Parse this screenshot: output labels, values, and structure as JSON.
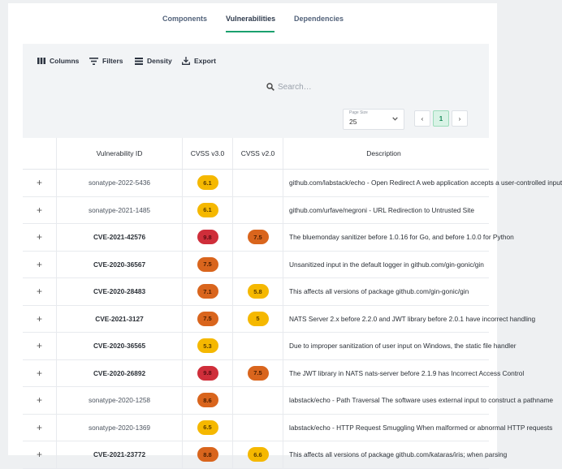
{
  "tabs": [
    {
      "label": "Components",
      "active": false
    },
    {
      "label": "Vulnerabilities",
      "active": true
    },
    {
      "label": "Dependencies",
      "active": false
    }
  ],
  "toolbar": {
    "columns_label": "Columns",
    "filters_label": "Filters",
    "density_label": "Density",
    "export_label": "Export"
  },
  "search": {
    "placeholder": "Search…"
  },
  "pagination": {
    "page_size_label": "Page Size",
    "page_size_value": "25",
    "prev": "‹",
    "current_page": "1",
    "next": "›"
  },
  "table": {
    "headers": {
      "id": "Vulnerability ID",
      "cvss_v3": "CVSS v3.0",
      "cvss_v2": "CVSS v2.0",
      "description": "Description"
    },
    "rows": [
      {
        "expand": "+",
        "id": "sonatype-2022-5436",
        "cvss_v3": "6.1",
        "cvss_v3_level": "medium",
        "cvss_v2": "",
        "cvss_v2_level": "",
        "description": "github.com/labstack/echo - Open Redirect A web application accepts a user-controlled input"
      },
      {
        "expand": "+",
        "id": "sonatype-2021-1485",
        "cvss_v3": "6.1",
        "cvss_v3_level": "medium",
        "cvss_v2": "",
        "cvss_v2_level": "",
        "description": "github.com/urfave/negroni - URL Redirection to Untrusted Site"
      },
      {
        "expand": "+",
        "id": "CVE-2021-42576",
        "cvss_v3": "9.8",
        "cvss_v3_level": "critical",
        "cvss_v2": "7.5",
        "cvss_v2_level": "high",
        "description": "The bluemonday sanitizer before 1.0.16 for Go, and before 1.0.0 for Python"
      },
      {
        "expand": "+",
        "id": "CVE-2020-36567",
        "cvss_v3": "7.5",
        "cvss_v3_level": "high",
        "cvss_v2": "",
        "cvss_v2_level": "",
        "description": "Unsanitized input in the default logger in github.com/gin-gonic/gin"
      },
      {
        "expand": "+",
        "id": "CVE-2020-28483",
        "cvss_v3": "7.1",
        "cvss_v3_level": "high",
        "cvss_v2": "5.8",
        "cvss_v2_level": "medium",
        "description": "This affects all versions of package github.com/gin-gonic/gin"
      },
      {
        "expand": "+",
        "id": "CVE-2021-3127",
        "cvss_v3": "7.5",
        "cvss_v3_level": "high",
        "cvss_v2": "5",
        "cvss_v2_level": "medium",
        "description": "NATS Server 2.x before 2.2.0 and JWT library before 2.0.1 have incorrect handling"
      },
      {
        "expand": "+",
        "id": "CVE-2020-36565",
        "cvss_v3": "5.3",
        "cvss_v3_level": "medium",
        "cvss_v2": "",
        "cvss_v2_level": "",
        "description": "Due to improper sanitization of user input on Windows, the static file handler"
      },
      {
        "expand": "+",
        "id": "CVE-2020-26892",
        "cvss_v3": "9.8",
        "cvss_v3_level": "critical",
        "cvss_v2": "7.5",
        "cvss_v2_level": "high",
        "description": "The JWT library in NATS nats-server before 2.1.9 has Incorrect Access Control"
      },
      {
        "expand": "+",
        "id": "sonatype-2020-1258",
        "cvss_v3": "8.6",
        "cvss_v3_level": "high",
        "cvss_v2": "",
        "cvss_v2_level": "",
        "description": "labstack/echo - Path Traversal The software uses external input to construct a pathname"
      },
      {
        "expand": "+",
        "id": "sonatype-2020-1369",
        "cvss_v3": "6.5",
        "cvss_v3_level": "medium",
        "cvss_v2": "",
        "cvss_v2_level": "",
        "description": "labstack/echo - HTTP Request Smuggling When malformed or abnormal HTTP requests"
      },
      {
        "expand": "+",
        "id": "CVE-2021-23772",
        "cvss_v3": "8.8",
        "cvss_v3_level": "high",
        "cvss_v2": "6.6",
        "cvss_v2_level": "medium",
        "description": "This affects all versions of package github.com/kataras/iris; when parsing"
      }
    ]
  },
  "colors": {
    "accent": "#1aa06e",
    "medium": "#f5b800",
    "high": "#d9651d",
    "critical": "#cf2e3a"
  }
}
